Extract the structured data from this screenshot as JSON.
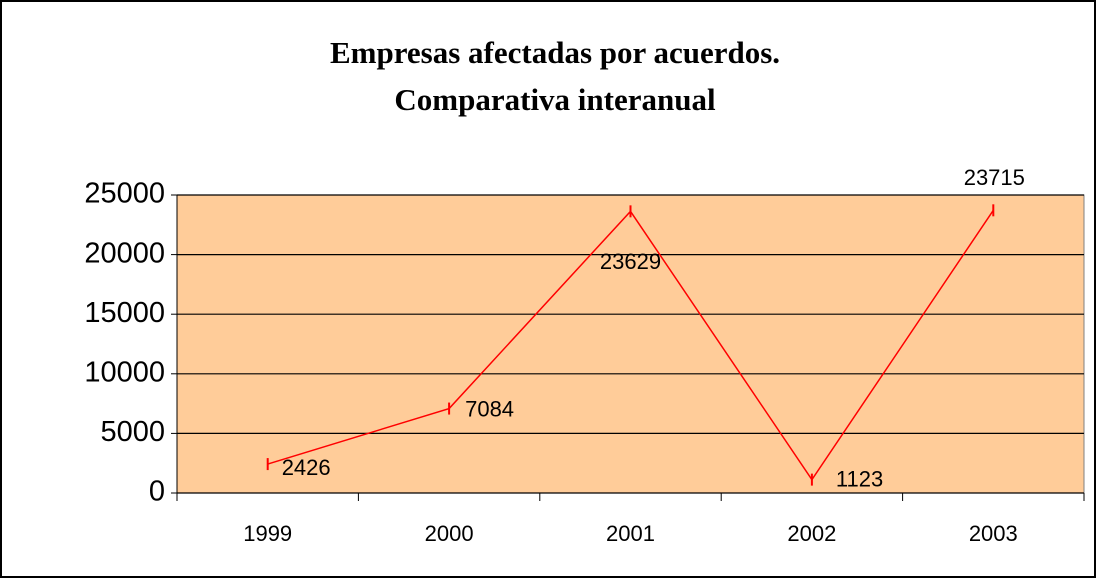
{
  "chart_data": {
    "type": "line",
    "title": [
      "Empresas afectadas por acuerdos.",
      "Comparativa interanual"
    ],
    "categories": [
      "1999",
      "2000",
      "2001",
      "2002",
      "2003"
    ],
    "values": [
      2426,
      7084,
      23629,
      1123,
      23715
    ],
    "color": "#ff0000",
    "plot_background": "#ffcc99",
    "ylim": [
      0,
      25000
    ],
    "yticks": [
      0,
      5000,
      10000,
      15000,
      20000,
      25000
    ],
    "grid": true
  }
}
